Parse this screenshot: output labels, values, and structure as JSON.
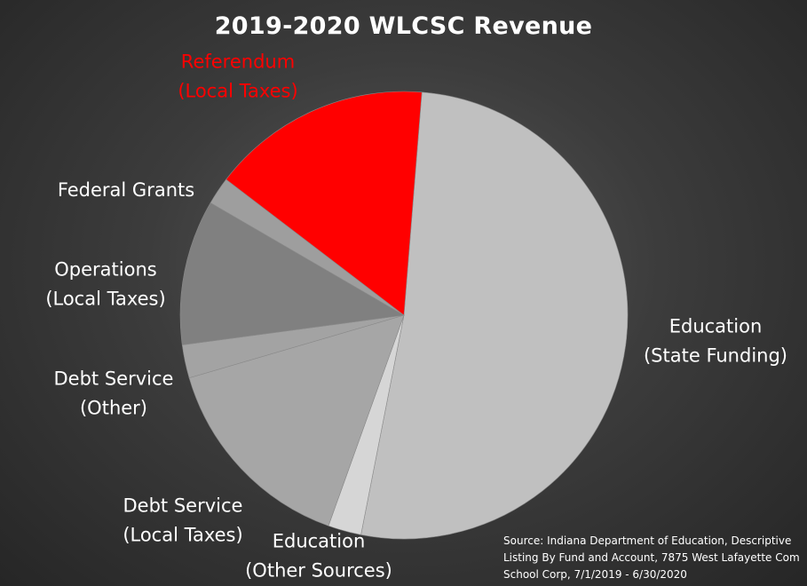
{
  "chart_data": {
    "type": "pie",
    "title": "2019-2020  WLCSC Revenue",
    "slices": [
      {
        "label_lines": [
          "Education",
          "(State Funding)"
        ],
        "value": 51.8,
        "color": "#c0c0c0",
        "label_color": "#ffffff"
      },
      {
        "label_lines": [
          "Education",
          "(Other Sources)"
        ],
        "value": 2.4,
        "color": "#d6d6d6",
        "label_color": "#ffffff"
      },
      {
        "label_lines": [
          "Debt Service",
          "(Local Taxes)"
        ],
        "value": 15.0,
        "color": "#a6a6a6",
        "label_color": "#ffffff"
      },
      {
        "label_lines": [
          "Debt Service",
          "(Other)"
        ],
        "value": 2.4,
        "color": "#a3a3a3",
        "label_color": "#ffffff"
      },
      {
        "label_lines": [
          "Operations",
          "(Local Taxes)"
        ],
        "value": 10.5,
        "color": "#808080",
        "label_color": "#ffffff"
      },
      {
        "label_lines": [
          "Federal Grants"
        ],
        "value": 2.0,
        "color": "#9e9e9e",
        "label_color": "#ffffff"
      },
      {
        "label_lines": [
          "Referendum",
          "(Local Taxes)"
        ],
        "value": 15.9,
        "color": "#ff0000",
        "label_color": "#ff0000"
      }
    ],
    "legend": "none"
  },
  "source": {
    "lines": [
      "Source: Indiana Department of Education, Descriptive",
      "Listing By Fund and Account, 7875  West Lafayette Com",
      "School Corp, 7/1/2019 - 6/30/2020"
    ]
  }
}
